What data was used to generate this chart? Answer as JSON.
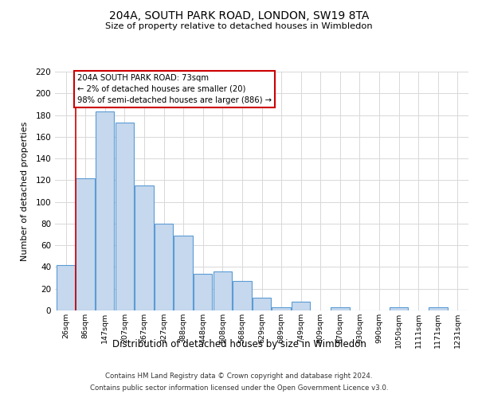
{
  "title": "204A, SOUTH PARK ROAD, LONDON, SW19 8TA",
  "subtitle": "Size of property relative to detached houses in Wimbledon",
  "xlabel": "Distribution of detached houses by size in Wimbledon",
  "ylabel": "Number of detached properties",
  "categories": [
    "26sqm",
    "86sqm",
    "147sqm",
    "207sqm",
    "267sqm",
    "327sqm",
    "388sqm",
    "448sqm",
    "508sqm",
    "568sqm",
    "629sqm",
    "689sqm",
    "749sqm",
    "809sqm",
    "870sqm",
    "930sqm",
    "990sqm",
    "1050sqm",
    "1111sqm",
    "1171sqm",
    "1231sqm"
  ],
  "values": [
    42,
    122,
    183,
    173,
    115,
    80,
    69,
    34,
    36,
    27,
    12,
    3,
    8,
    0,
    3,
    0,
    0,
    3,
    0,
    3,
    0
  ],
  "bar_color": "#c5d8ed",
  "bar_edge_color": "#5b9bd5",
  "annotation_title": "204A SOUTH PARK ROAD: 73sqm",
  "annotation_line2": "← 2% of detached houses are smaller (20)",
  "annotation_line3": "98% of semi-detached houses are larger (886) →",
  "annotation_box_color": "#ffffff",
  "annotation_box_edgecolor": "#cc0000",
  "vline_color": "#cc0000",
  "ylim": [
    0,
    220
  ],
  "yticks": [
    0,
    20,
    40,
    60,
    80,
    100,
    120,
    140,
    160,
    180,
    200,
    220
  ],
  "footer_line1": "Contains HM Land Registry data © Crown copyright and database right 2024.",
  "footer_line2": "Contains public sector information licensed under the Open Government Licence v3.0.",
  "background_color": "#ffffff",
  "grid_color": "#d8d8d8"
}
